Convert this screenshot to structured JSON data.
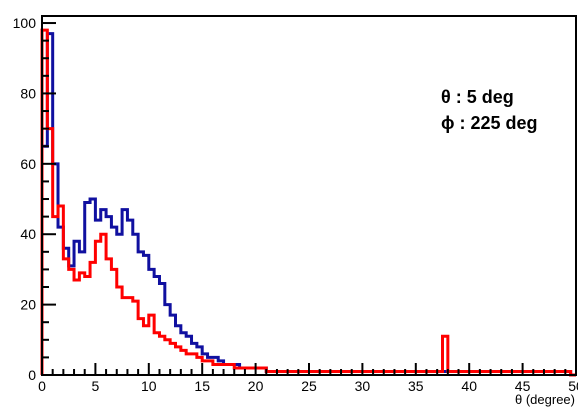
{
  "chart_data": {
    "type": "line",
    "style": "step-histogram",
    "title": "",
    "xlabel": "θ (degree)",
    "ylabel": "",
    "xlim": [
      0,
      50
    ],
    "ylim": [
      0,
      102
    ],
    "x_ticks": [
      "0",
      "5",
      "10",
      "15",
      "20",
      "25",
      "30",
      "35",
      "40",
      "45",
      "50"
    ],
    "y_ticks": [
      "0",
      "20",
      "40",
      "60",
      "80",
      "100"
    ],
    "grid": false,
    "legend": "none",
    "annotations": [
      "θ : 5 deg",
      "ϕ : 225 deg"
    ],
    "annotation_position": "top-right",
    "colors": {
      "blue": "#1010a0",
      "red": "#ff0000",
      "axis": "#000000"
    },
    "x": [
      0.5,
      1.0,
      1.5,
      2.0,
      2.5,
      3.0,
      3.5,
      4.0,
      4.5,
      5.0,
      5.5,
      6.0,
      6.5,
      7.0,
      7.5,
      8.0,
      8.5,
      9.0,
      9.5,
      10.0,
      10.5,
      11.0,
      11.5,
      12.0,
      12.5,
      13.0,
      13.5,
      14.0,
      14.5,
      15.0,
      15.5,
      16.0,
      16.5,
      17.0,
      17.5,
      18.0,
      18.5,
      19.0,
      19.5,
      20.0,
      20.5,
      21.0,
      21.5,
      22.0,
      22.5,
      23.0,
      23.5,
      24.0,
      24.5,
      25.0,
      25.5,
      26.0,
      26.5,
      27.0,
      27.5,
      28.0,
      28.5,
      29.0,
      29.5,
      30.0,
      30.5,
      31.0,
      31.5,
      32.0,
      32.5,
      33.0,
      33.5,
      34.0,
      34.5,
      35.0,
      35.5,
      36.0,
      36.5,
      37.0,
      37.5,
      38.0,
      38.5,
      39.0,
      39.5,
      40.0,
      40.5,
      41.0,
      41.5,
      42.0,
      42.5,
      43.0,
      43.5,
      44.0,
      44.5,
      45.0,
      45.5,
      46.0,
      46.5,
      47.0,
      47.5,
      48.0,
      48.5,
      49.0,
      49.5,
      50.0
    ],
    "series": [
      {
        "color": "blue",
        "values": [
          65,
          97,
          60,
          42,
          36,
          31,
          38,
          35,
          49,
          50,
          44,
          47,
          45,
          42,
          40,
          47,
          44,
          40,
          35,
          34,
          30,
          28,
          26,
          20,
          17,
          14,
          12,
          11,
          9,
          8,
          6,
          5,
          5,
          4,
          3,
          3,
          3,
          2,
          2,
          2,
          2,
          2,
          1,
          1,
          1,
          1,
          1,
          1,
          1,
          1,
          1,
          1,
          1,
          1,
          1,
          1,
          1,
          1,
          1,
          1,
          1,
          1,
          1,
          1,
          1,
          1,
          1,
          1,
          1,
          1,
          1,
          1,
          1,
          1,
          1,
          1,
          1,
          1,
          1,
          1,
          1,
          1,
          1,
          1,
          1,
          1,
          1,
          1,
          1,
          1,
          1,
          1,
          1,
          1,
          1,
          1,
          1,
          1,
          1,
          0
        ]
      },
      {
        "color": "red",
        "values": [
          98,
          70,
          45,
          48,
          33,
          30,
          27,
          29,
          28,
          32,
          38,
          40,
          33,
          30,
          25,
          22,
          22,
          21,
          16,
          14,
          17,
          12,
          11,
          10,
          9,
          8,
          7,
          6,
          6,
          5,
          4,
          4,
          3,
          3,
          3,
          3,
          2,
          2,
          2,
          2,
          2,
          2,
          1,
          1,
          1,
          1,
          1,
          1,
          1,
          1,
          1,
          1,
          1,
          1,
          1,
          1,
          1,
          1,
          1,
          1,
          1,
          1,
          1,
          1,
          1,
          1,
          1,
          1,
          1,
          1,
          1,
          1,
          1,
          1,
          1,
          11,
          1,
          1,
          1,
          1,
          1,
          1,
          1,
          1,
          1,
          1,
          1,
          1,
          1,
          1,
          1,
          1,
          1,
          1,
          1,
          1,
          1,
          1,
          1,
          0
        ]
      }
    ]
  }
}
